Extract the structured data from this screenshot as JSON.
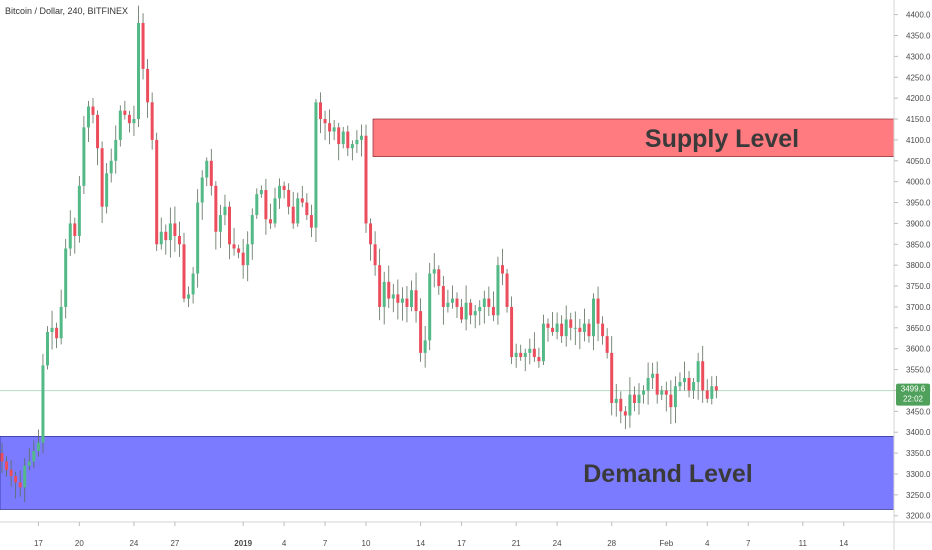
{
  "header": {
    "title": "Bitcoin / Dollar, 240, BITFINEX"
  },
  "chart_data": {
    "type": "candlestick",
    "title": "Bitcoin / Dollar, 240, BITFINEX",
    "ylim": [
      3185,
      4435
    ],
    "y_ticks": [
      "4400.0",
      "4350.0",
      "4300.0",
      "4250.0",
      "4200.0",
      "4150.0",
      "4100.0",
      "4050.0",
      "4000.0",
      "3950.0",
      "3900.0",
      "3850.0",
      "3800.0",
      "3750.0",
      "3700.0",
      "3650.0",
      "3600.0",
      "3550.0",
      "3500.0",
      "3450.0",
      "3400.0",
      "3350.0",
      "3300.0",
      "3250.0",
      "3200.0"
    ],
    "x_ticks": [
      {
        "label": "17",
        "i": 8
      },
      {
        "label": "20",
        "i": 17
      },
      {
        "label": "24",
        "i": 29
      },
      {
        "label": "27",
        "i": 38
      },
      {
        "label": "2019",
        "i": 53
      },
      {
        "label": "4",
        "i": 62
      },
      {
        "label": "7",
        "i": 71
      },
      {
        "label": "10",
        "i": 80
      },
      {
        "label": "14",
        "i": 92
      },
      {
        "label": "17",
        "i": 101
      },
      {
        "label": "21",
        "i": 113
      },
      {
        "label": "24",
        "i": 122
      },
      {
        "label": "28",
        "i": 134
      },
      {
        "label": "Feb",
        "i": 146
      },
      {
        "label": "4",
        "i": 155
      },
      {
        "label": "7",
        "i": 164
      },
      {
        "label": "11",
        "i": 176
      },
      {
        "label": "14",
        "i": 185
      }
    ],
    "closes": [
      3330,
      3310,
      3295,
      3280,
      3268,
      3320,
      3330,
      3355,
      3375,
      3560,
      3640,
      3650,
      3625,
      3700,
      3840,
      3900,
      3870,
      3990,
      4130,
      4180,
      4160,
      4080,
      3940,
      4020,
      4050,
      4100,
      4170,
      4160,
      4140,
      4150,
      4380,
      4270,
      4190,
      4100,
      3850,
      3880,
      3860,
      3900,
      3870,
      3850,
      3720,
      3730,
      3780,
      3950,
      4010,
      4050,
      3990,
      3880,
      3920,
      3940,
      3850,
      3840,
      3830,
      3800,
      3850,
      3920,
      3970,
      3980,
      3910,
      3900,
      3960,
      3990,
      3980,
      3940,
      3900,
      3960,
      3950,
      3920,
      3890,
      4190,
      4150,
      4140,
      4120,
      4130,
      4090,
      4120,
      4080,
      4090,
      4100,
      4110,
      3900,
      3850,
      3800,
      3700,
      3760,
      3720,
      3730,
      3710,
      3720,
      3700,
      3740,
      3690,
      3590,
      3620,
      3780,
      3790,
      3750,
      3700,
      3710,
      3720,
      3700,
      3670,
      3710,
      3680,
      3690,
      3700,
      3720,
      3700,
      3680,
      3800,
      3780,
      3700,
      3580,
      3590,
      3580,
      3590,
      3600,
      3580,
      3570,
      3660,
      3650,
      3640,
      3660,
      3630,
      3670,
      3650,
      3650,
      3640,
      3660,
      3630,
      3720,
      3660,
      3630,
      3590,
      3470,
      3480,
      3450,
      3440,
      3490,
      3470,
      3490,
      3500,
      3530,
      3540,
      3490,
      3500,
      3490,
      3460,
      3510,
      3520,
      3530,
      3500,
      3520,
      3570,
      3500,
      3480,
      3510,
      3500
    ]
  },
  "zones": {
    "supply": {
      "label": "Supply Level",
      "top": 4150,
      "bottom": 4060,
      "color": "#ff7b80"
    },
    "demand": {
      "label": "Demand Level",
      "top": 3390,
      "bottom": 3215,
      "color": "#7b7bff"
    }
  },
  "price_tag": {
    "value": "3499.6",
    "time": "22:02",
    "price": 3499.6,
    "color": "#4fa05a"
  },
  "colors": {
    "up": "#53b987",
    "down": "#eb4d5c",
    "wick": "#5b6e5b",
    "line": "#b7dbc5"
  }
}
